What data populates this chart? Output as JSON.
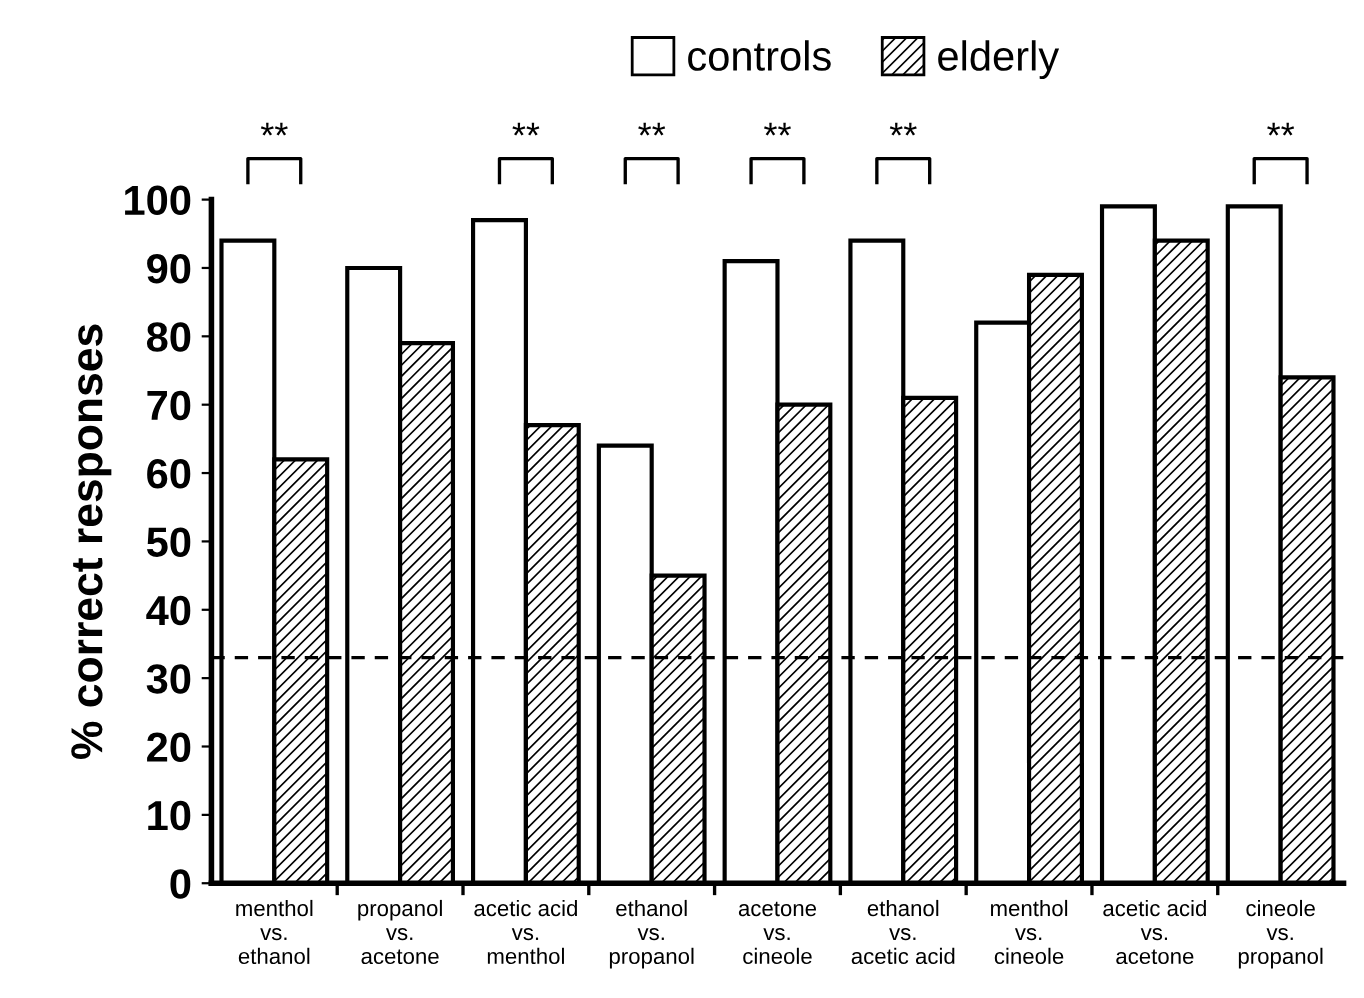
{
  "chart_data": {
    "type": "bar",
    "ylabel": "% correct responses",
    "categories": [
      "menthol\nvs.\nethanol",
      "propanol\nvs.\nacetone",
      "acetic acid\nvs.\nmenthol",
      "ethanol\nvs.\npropanol",
      "acetone\nvs.\ncineole",
      "ethanol\nvs.\nacetic acid",
      "menthol\nvs.\ncineole",
      "acetic acid\nvs.\nacetone",
      "cineole\nvs.\npropanol"
    ],
    "series": [
      {
        "name": "controls",
        "color": "#ffffff",
        "values": [
          94,
          90,
          97,
          64,
          91,
          94,
          82,
          99,
          99
        ],
        "value_labels": [
          "**",
          null,
          "**",
          "**",
          "**",
          "**",
          null,
          null,
          "**"
        ]
      },
      {
        "name": "elderly",
        "color": "#000000",
        "values": [
          62,
          79,
          67,
          45,
          70,
          71,
          89,
          94,
          74
        ]
      }
    ],
    "ylim": [
      0,
      100
    ],
    "yticks": [
      0,
      10,
      20,
      30,
      40,
      50,
      60,
      70,
      80,
      90,
      100
    ],
    "ref_lines": [
      {
        "axis": "y",
        "value": 33,
        "line_style": "dashed",
        "color": "#000000"
      }
    ],
    "legend": "top",
    "grid": false
  }
}
